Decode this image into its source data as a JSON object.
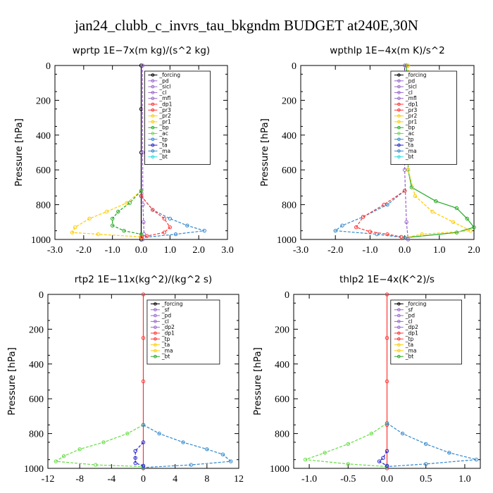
{
  "title": "jan24_clubb_c_invrs_tau_bkgndm  BUDGET at240E,30N",
  "chart_data": [
    {
      "type": "line",
      "title": "wprtp   1E−7x(m kg)/(s^2 kg)",
      "ylabel": "Pressure [hPa]",
      "xlim": [
        -3.0,
        3.0
      ],
      "ylim": [
        1000,
        0
      ],
      "xticks": [
        "-3.0",
        "-2.0",
        "-1.0",
        "0.0",
        "1.0",
        "2.0",
        "3.0"
      ],
      "yticks": [
        "0",
        "200",
        "400",
        "600",
        "800",
        "1000"
      ],
      "legend": [
        "_forcing",
        "_pd",
        "_sicl",
        "_cl",
        "_mfl",
        "_dp1",
        "_pr3",
        "_pr2",
        "_pr1",
        "_bp",
        "_ac",
        "_tp",
        "_ta",
        "_ma",
        "_bt"
      ],
      "legend_placement": "top-right",
      "series": [
        {
          "name": "_forcing",
          "color": "#000000",
          "points": [
            [
              0,
              0
            ],
            [
              0,
              250
            ],
            [
              0,
              500
            ],
            [
              0,
              750
            ],
            [
              0,
              1000
            ]
          ]
        },
        {
          "name": "_ma",
          "color": "#9966cc",
          "points": [
            [
              0.05,
              0
            ],
            [
              0.05,
              500
            ],
            [
              0.06,
              800
            ],
            [
              0.08,
              900
            ],
            [
              0.1,
              970
            ],
            [
              0.05,
              1000
            ]
          ]
        },
        {
          "name": "_pr1",
          "color": "#ffcc00",
          "points": [
            [
              0,
              720
            ],
            [
              -0.5,
              790
            ],
            [
              -1.2,
              840
            ],
            [
              -1.8,
              880
            ],
            [
              -2.3,
              930
            ],
            [
              -2.4,
              960
            ],
            [
              -1.5,
              970
            ],
            [
              0,
              985
            ]
          ]
        },
        {
          "name": "_bp",
          "color": "#22aa22",
          "points": [
            [
              0,
              720
            ],
            [
              -0.4,
              790
            ],
            [
              -0.8,
              840
            ],
            [
              -1.0,
              880
            ],
            [
              -1.0,
              920
            ],
            [
              -0.6,
              950
            ],
            [
              0,
              970
            ]
          ]
        },
        {
          "name": "_tp",
          "color": "#3388cc",
          "points": [
            [
              0,
              750
            ],
            [
              0.4,
              830
            ],
            [
              1.0,
              880
            ],
            [
              1.6,
              920
            ],
            [
              2.2,
              950
            ],
            [
              1.2,
              970
            ],
            [
              0,
              990
            ]
          ]
        },
        {
          "name": "_pr3",
          "color": "#ff3333",
          "points": [
            [
              0,
              750
            ],
            [
              0.4,
              830
            ],
            [
              0.8,
              880
            ],
            [
              1.0,
              930
            ],
            [
              0.8,
              960
            ],
            [
              0.2,
              980
            ],
            [
              0,
              990
            ]
          ]
        }
      ]
    },
    {
      "type": "line",
      "title": "wpthlp   1E−4x(m K)/s^2",
      "ylabel": "Pressure [hPa]",
      "xlim": [
        -3.0,
        2.0
      ],
      "ylim": [
        1000,
        0
      ],
      "xticks": [
        "-3.0",
        "-2.0",
        "-1.0",
        "0.0",
        "1.0",
        "2.0"
      ],
      "yticks": [
        "0",
        "200",
        "400",
        "600",
        "800",
        "1000"
      ],
      "legend": [
        "_forcing",
        "_pd",
        "_sicl",
        "_cl",
        "_mfl",
        "_dp1",
        "_pr3",
        "_pr2",
        "_pr1",
        "_bp",
        "_ac",
        "_tp",
        "_ta",
        "_ma",
        "_bt"
      ],
      "legend_placement": "top-right",
      "series": [
        {
          "name": "_bp",
          "color": "#22aa22",
          "points": [
            [
              0.05,
              0
            ],
            [
              0.1,
              300
            ],
            [
              0.1,
              600
            ],
            [
              0.2,
              700
            ],
            [
              0.9,
              780
            ],
            [
              1.5,
              820
            ],
            [
              1.8,
              880
            ],
            [
              2.0,
              930
            ],
            [
              1.5,
              960
            ],
            [
              0,
              990
            ]
          ]
        },
        {
          "name": "_pr1",
          "color": "#ffcc00",
          "points": [
            [
              0.1,
              0
            ],
            [
              0.1,
              600
            ],
            [
              0.3,
              750
            ],
            [
              0.8,
              840
            ],
            [
              1.4,
              900
            ],
            [
              1.9,
              950
            ],
            [
              0.5,
              970
            ],
            [
              0,
              990
            ]
          ]
        },
        {
          "name": "_ma",
          "color": "#9966cc",
          "points": [
            [
              0,
              0
            ],
            [
              0,
              600
            ],
            [
              0.05,
              900
            ],
            [
              0.1,
              1000
            ]
          ]
        },
        {
          "name": "_tp",
          "color": "#3388cc",
          "points": [
            [
              0,
              720
            ],
            [
              -0.5,
              800
            ],
            [
              -1.2,
              870
            ],
            [
              -1.8,
              920
            ],
            [
              -2.0,
              950
            ],
            [
              -0.8,
              970
            ],
            [
              0,
              990
            ]
          ]
        },
        {
          "name": "_pr3",
          "color": "#ff3333",
          "points": [
            [
              0,
              720
            ],
            [
              -0.6,
              800
            ],
            [
              -1.2,
              870
            ],
            [
              -1.4,
              930
            ],
            [
              -1.0,
              955
            ],
            [
              -0.5,
              970
            ],
            [
              -0.1,
              985
            ]
          ]
        }
      ]
    },
    {
      "type": "line",
      "title": "rtp2   1E−11x(kg^2)/(kg^2 s)",
      "ylabel": "Pressure [hPa]",
      "xlim": [
        -12,
        12
      ],
      "ylim": [
        1000,
        0
      ],
      "xticks": [
        "-12",
        "-8",
        "-4",
        "0",
        "4",
        "8",
        "12"
      ],
      "yticks": [
        "0",
        "200",
        "400",
        "600",
        "800",
        "1000"
      ],
      "legend": [
        "_forcing",
        "_sf",
        "_pd",
        "_cl",
        "_dp2",
        "_dp1",
        "_tp",
        "_ta",
        "_ma",
        "_bt"
      ],
      "legend_placement": "top-right",
      "series": [
        {
          "name": "_forcing",
          "color": "#ff3333",
          "points": [
            [
              0,
              0
            ],
            [
              0,
              250
            ],
            [
              0,
              500
            ],
            [
              0,
              750
            ],
            [
              0,
              1000
            ]
          ]
        },
        {
          "name": "_dp1",
          "color": "#66dd44",
          "points": [
            [
              0,
              750
            ],
            [
              -2,
              800
            ],
            [
              -5,
              850
            ],
            [
              -8,
              890
            ],
            [
              -10,
              930
            ],
            [
              -11,
              960
            ],
            [
              -6,
              980
            ],
            [
              0,
              990
            ]
          ]
        },
        {
          "name": "_tp",
          "color": "#3388cc",
          "points": [
            [
              0,
              750
            ],
            [
              2,
              800
            ],
            [
              5,
              850
            ],
            [
              8,
              890
            ],
            [
              10,
              920
            ],
            [
              11,
              960
            ],
            [
              6,
              980
            ],
            [
              0,
              995
            ]
          ]
        },
        {
          "name": "_ta",
          "color": "#2222cc",
          "points": [
            [
              0,
              850
            ],
            [
              -1,
              900
            ],
            [
              -1,
              940
            ],
            [
              -1,
              970
            ],
            [
              0,
              985
            ]
          ]
        }
      ]
    },
    {
      "type": "line",
      "title": "thlp2   1E−4x(K^2)/s",
      "ylabel": "Pressure [hPa]",
      "xlim": [
        -1.2,
        1.2
      ],
      "ylim": [
        1000,
        0
      ],
      "xticks": [
        "-1.0",
        "-0.5",
        "0.0",
        "0.5",
        "1.0"
      ],
      "yticks": [
        "0",
        "200",
        "400",
        "600",
        "800",
        "1000"
      ],
      "legend": [
        "_forcing",
        "_sf",
        "_pd",
        "_cl",
        "_dp2",
        "_dp1",
        "_tp",
        "_ta",
        "_ma",
        "_bt"
      ],
      "legend_placement": "top-right",
      "series": [
        {
          "name": "_forcing",
          "color": "#ff3333",
          "points": [
            [
              0,
              0
            ],
            [
              0,
              250
            ],
            [
              0,
              500
            ],
            [
              0,
              750
            ],
            [
              0,
              1000
            ]
          ]
        },
        {
          "name": "_dp1",
          "color": "#66dd44",
          "points": [
            [
              0,
              740
            ],
            [
              -0.2,
              800
            ],
            [
              -0.5,
              860
            ],
            [
              -0.8,
              910
            ],
            [
              -1.05,
              950
            ],
            [
              -0.5,
              975
            ],
            [
              0,
              990
            ]
          ]
        },
        {
          "name": "_tp",
          "color": "#3388cc",
          "points": [
            [
              0,
              740
            ],
            [
              0.2,
              800
            ],
            [
              0.5,
              860
            ],
            [
              0.8,
              910
            ],
            [
              1.15,
              950
            ],
            [
              0.5,
              975
            ],
            [
              0,
              990
            ]
          ]
        },
        {
          "name": "_ta",
          "color": "#2222cc",
          "points": [
            [
              0,
              900
            ],
            [
              -0.05,
              940
            ],
            [
              -0.1,
              960
            ],
            [
              0,
              985
            ]
          ]
        }
      ]
    }
  ]
}
